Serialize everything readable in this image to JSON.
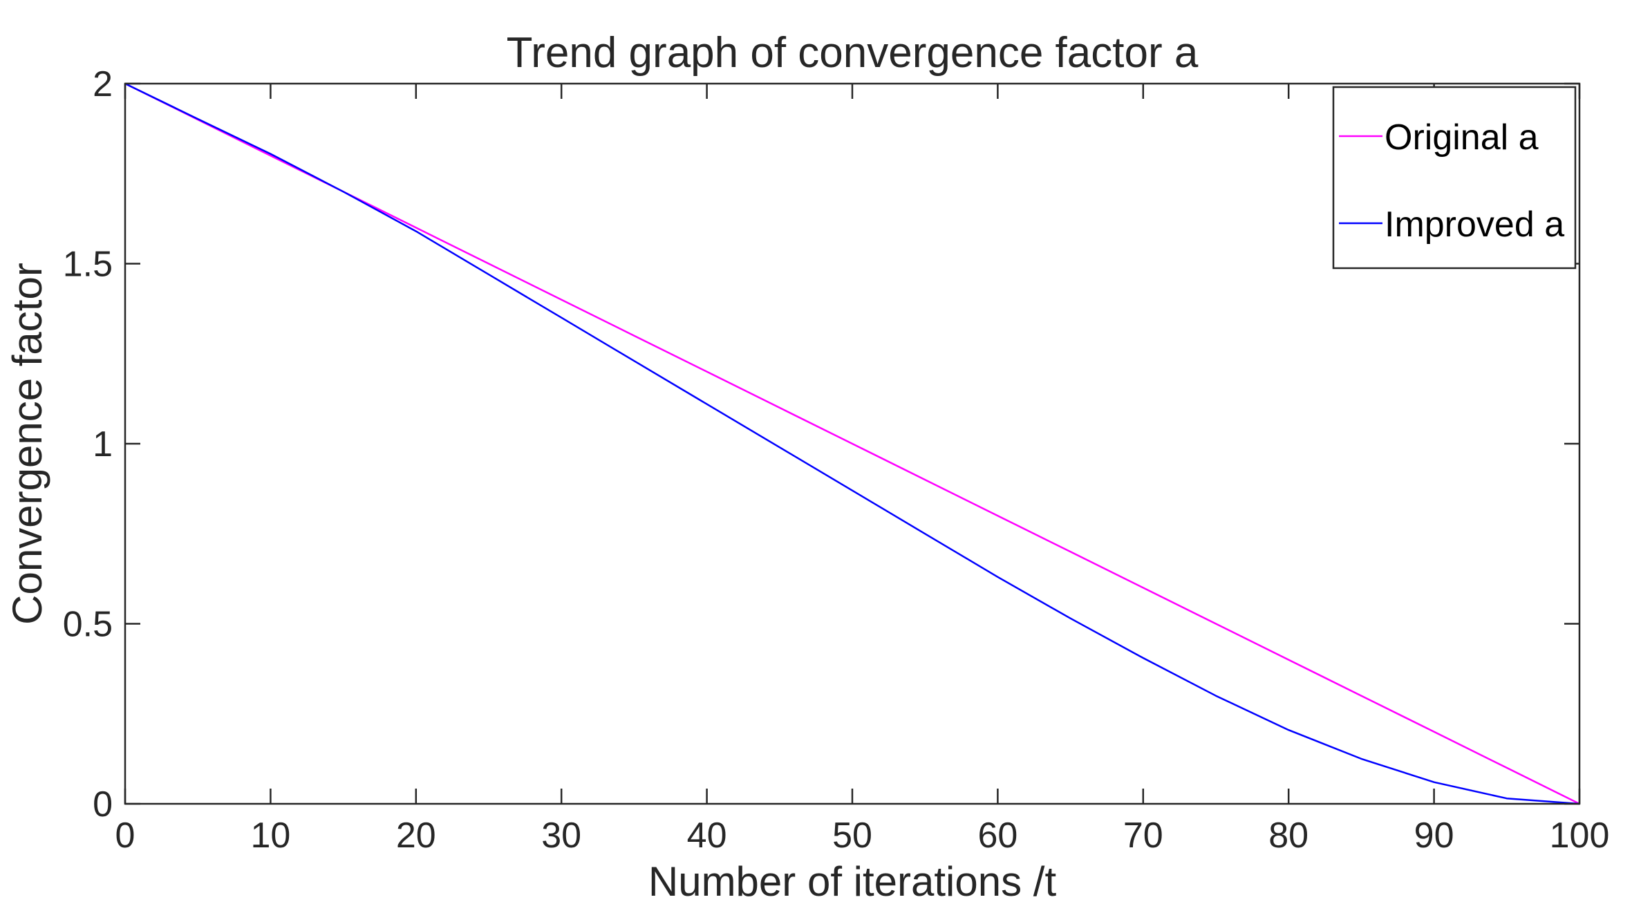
{
  "chart_data": {
    "type": "line",
    "title": "Trend graph of convergence factor a",
    "xlabel": "Number of iterations /t",
    "ylabel": "Convergence factor",
    "xlim": [
      0,
      100
    ],
    "ylim": [
      0,
      2
    ],
    "xticks": [
      0,
      10,
      20,
      30,
      40,
      50,
      60,
      70,
      80,
      90,
      100
    ],
    "yticks": [
      0,
      0.5,
      1,
      1.5,
      2
    ],
    "xtick_labels": [
      "0",
      "10",
      "20",
      "30",
      "40",
      "50",
      "60",
      "70",
      "80",
      "90",
      "100"
    ],
    "ytick_labels": [
      "0",
      "0.5",
      "1",
      "1.5",
      "2"
    ],
    "grid": false,
    "legend_position": "top-right",
    "x": [
      0,
      5,
      10,
      15,
      20,
      25,
      30,
      35,
      40,
      45,
      50,
      55,
      60,
      65,
      70,
      75,
      80,
      85,
      90,
      95,
      100
    ],
    "series": [
      {
        "name": "Original a",
        "color": "#ff00ff",
        "values": [
          2.0,
          1.9,
          1.8,
          1.7,
          1.6,
          1.5,
          1.4,
          1.3,
          1.2,
          1.1,
          1.0,
          0.9,
          0.8,
          0.7,
          0.6,
          0.5,
          0.4,
          0.3,
          0.2,
          0.1,
          0.0
        ]
      },
      {
        "name": "Improved a",
        "color": "#0000ff",
        "values": [
          2.0,
          1.902,
          1.805,
          1.7,
          1.59,
          1.47,
          1.35,
          1.23,
          1.11,
          0.99,
          0.87,
          0.75,
          0.63,
          0.515,
          0.405,
          0.3,
          0.205,
          0.125,
          0.06,
          0.015,
          0.0
        ]
      }
    ]
  }
}
